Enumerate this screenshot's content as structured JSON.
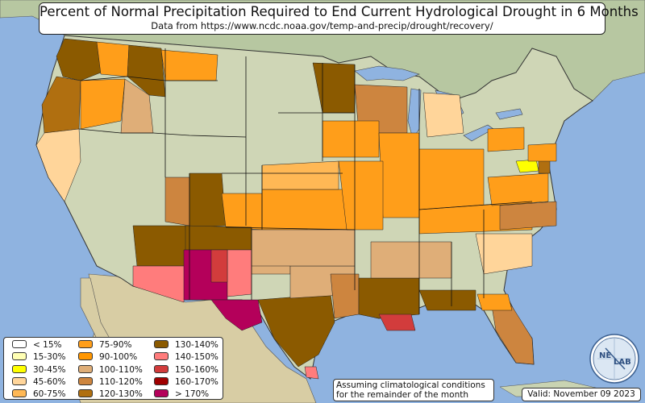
{
  "header": {
    "title": "Percent of Normal Precipitation Required to End Current Hydrological Drought in 6 Months",
    "subtitle": "Data from https://www.ncdc.noaa.gov/temp-and-precip/drought/recovery/"
  },
  "legend": {
    "items": [
      {
        "label": "< 15%",
        "color": "#ffffff"
      },
      {
        "label": "15-30%",
        "color": "#ffffb4"
      },
      {
        "label": "30-45%",
        "color": "#ffff00"
      },
      {
        "label": "45-60%",
        "color": "#ffd59a"
      },
      {
        "label": "60-75%",
        "color": "#ffb855"
      },
      {
        "label": "75-90%",
        "color": "#ff9e1a"
      },
      {
        "label": "90-100%",
        "color": "#ff9600"
      },
      {
        "label": "100-110%",
        "color": "#dfae78"
      },
      {
        "label": "110-120%",
        "color": "#cd853f"
      },
      {
        "label": "120-130%",
        "color": "#b06f10"
      },
      {
        "label": "130-140%",
        "color": "#8b5a00"
      },
      {
        "label": "140-150%",
        "color": "#ff7c7c"
      },
      {
        "label": "150-160%",
        "color": "#d23c3c"
      },
      {
        "label": "160-170%",
        "color": "#a00000"
      },
      {
        "label": "> 170%",
        "color": "#b4005a"
      }
    ]
  },
  "note": {
    "line1": "Assuming climatological conditions",
    "line2": "for the remainder of the month"
  },
  "valid": "Valid: November 09 2023",
  "logo": {
    "text_left": "NE",
    "text_right": "LAB"
  },
  "colors": {
    "ocean": "#8fb3e0",
    "land": "#c9d3b2",
    "land_dry": "#e2d6b8",
    "canada": "#b8c9a3",
    "mexico": "#d9cfa6"
  }
}
